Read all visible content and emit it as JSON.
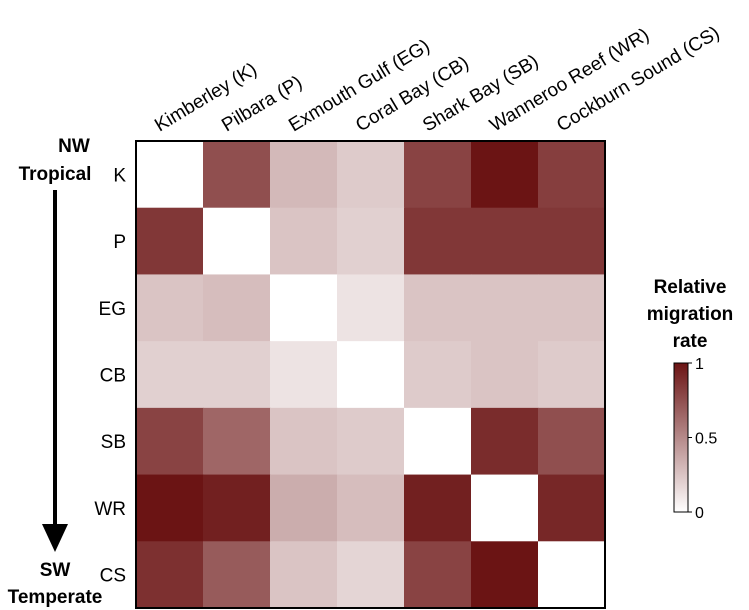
{
  "chart_data": {
    "type": "heatmap",
    "title": "",
    "columns": [
      "Kimberley (K)",
      "Pilbara (P)",
      "Exmouth Gulf (EG)",
      "Coral Bay (CB)",
      "Shark Bay (SB)",
      "Wanneroo Reef (WR)",
      "Cockburn Sound (CS)"
    ],
    "rows": [
      "K",
      "P",
      "EG",
      "CB",
      "SB",
      "WR",
      "CS"
    ],
    "values": [
      [
        0.0,
        0.75,
        0.3,
        0.22,
        0.8,
        1.0,
        0.82
      ],
      [
        0.85,
        0.0,
        0.25,
        0.2,
        0.85,
        0.85,
        0.85
      ],
      [
        0.25,
        0.28,
        0.0,
        0.12,
        0.25,
        0.25,
        0.25
      ],
      [
        0.2,
        0.2,
        0.12,
        0.0,
        0.22,
        0.25,
        0.22
      ],
      [
        0.8,
        0.65,
        0.25,
        0.22,
        0.0,
        0.9,
        0.75
      ],
      [
        1.0,
        0.95,
        0.35,
        0.28,
        0.95,
        0.0,
        0.92
      ],
      [
        0.88,
        0.7,
        0.25,
        0.18,
        0.8,
        1.0,
        0.0
      ]
    ],
    "side_labels": {
      "top": [
        "NW",
        "Tropical"
      ],
      "bottom": [
        "SW",
        "Temperate"
      ]
    },
    "legend": {
      "title": [
        "Relative",
        "migration",
        "rate"
      ],
      "ticks": [
        {
          "value": 1,
          "label": "1"
        },
        {
          "value": 0.5,
          "label": "0.5"
        },
        {
          "value": 0,
          "label": "0"
        }
      ]
    },
    "colors": {
      "low": "#ffffff",
      "high": "#6b1414",
      "border": "#000000"
    }
  }
}
